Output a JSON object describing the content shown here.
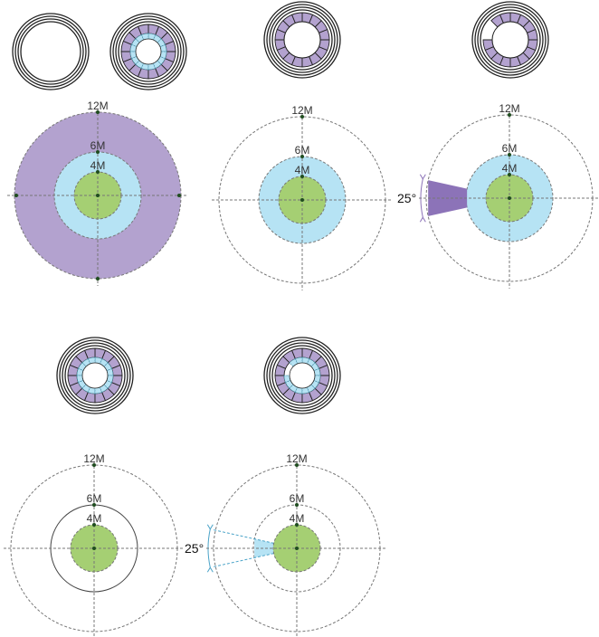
{
  "labels": {
    "r12": "12M",
    "r6": "6M",
    "r4": "4M",
    "angle": "25°"
  },
  "colors": {
    "purple": "#b3a2cf",
    "purple_dark": "#8c73b8",
    "light_blue": "#b6e3f4",
    "green": "#a5cf73",
    "dot": "#1f4d1f",
    "dash": "#777777",
    "ring_stroke": "#222222"
  },
  "icons": [
    {
      "name": "plain-ring-icon",
      "rings": []
    },
    {
      "name": "full-coverage-ring-icon",
      "rings": [
        "purple",
        "light_blue"
      ]
    },
    {
      "name": "purple-ring-icon",
      "rings": [
        "purple"
      ]
    },
    {
      "name": "purple-ring-gap-icon",
      "rings": [
        "purple"
      ],
      "gap": "purple"
    },
    {
      "name": "dual-ring-icon",
      "rings": [
        "purple",
        "light_blue"
      ]
    },
    {
      "name": "dual-ring-gap-icon",
      "rings": [
        "purple",
        "light_blue"
      ],
      "gap": "light_blue"
    }
  ],
  "diagrams": [
    {
      "name": "full-coverage-diagram",
      "outer_fill": "purple",
      "mid_fill": "light_blue",
      "inner_fill": "green",
      "outer_dots": true
    },
    {
      "name": "mid-coverage-diagram",
      "outer_fill": "none",
      "mid_fill": "light_blue",
      "inner_fill": "green"
    },
    {
      "name": "mid-coverage-sector-diagram",
      "outer_fill": "none",
      "mid_fill": "light_blue",
      "inner_fill": "green",
      "sector": {
        "ring": "outer",
        "color": "purple_dark",
        "angle_deg": 25
      }
    },
    {
      "name": "inner-coverage-diagram",
      "outer_fill": "none",
      "mid_fill": "none",
      "mid_solid": true,
      "inner_fill": "green"
    },
    {
      "name": "inner-coverage-sector-diagram",
      "outer_fill": "none",
      "mid_fill": "none",
      "inner_fill": "green",
      "sector": {
        "ring": "mid",
        "color": "light_blue",
        "angle_deg": 25
      }
    }
  ]
}
